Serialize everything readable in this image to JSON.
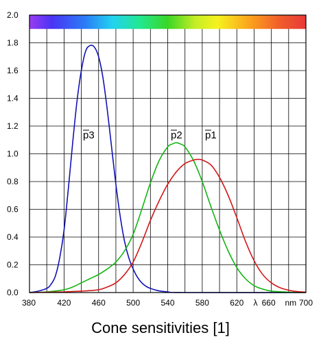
{
  "caption": "Cone sensitivities [1]",
  "chart_data": {
    "type": "line",
    "title": "Cone sensitivities [1]",
    "xlabel": "λ",
    "x_unit": "nm",
    "xlim": [
      380,
      700
    ],
    "ylim": [
      0,
      2.0
    ],
    "x_ticks": [
      "380",
      "420",
      "460",
      "500",
      "540",
      "580",
      "620",
      "λ",
      "660",
      "nm",
      "700"
    ],
    "y_ticks": [
      "0.0",
      "0.2",
      "0.4",
      "0.6",
      "0.8",
      "1.0",
      "1.2",
      "1.4",
      "1.6",
      "1.8",
      "2.0"
    ],
    "grid": true,
    "spectrum_bar": true,
    "series": [
      {
        "name": "p3",
        "color": "#1010b4",
        "points": [
          [
            380,
            0.0
          ],
          [
            390,
            0.01
          ],
          [
            400,
            0.03
          ],
          [
            405,
            0.06
          ],
          [
            410,
            0.12
          ],
          [
            415,
            0.25
          ],
          [
            420,
            0.45
          ],
          [
            425,
            0.75
          ],
          [
            430,
            1.08
          ],
          [
            435,
            1.38
          ],
          [
            440,
            1.6
          ],
          [
            445,
            1.74
          ],
          [
            450,
            1.78
          ],
          [
            455,
            1.77
          ],
          [
            460,
            1.7
          ],
          [
            465,
            1.55
          ],
          [
            470,
            1.32
          ],
          [
            475,
            1.05
          ],
          [
            480,
            0.78
          ],
          [
            485,
            0.55
          ],
          [
            490,
            0.37
          ],
          [
            495,
            0.25
          ],
          [
            500,
            0.17
          ],
          [
            505,
            0.11
          ],
          [
            510,
            0.07
          ],
          [
            515,
            0.045
          ],
          [
            520,
            0.03
          ],
          [
            525,
            0.02
          ],
          [
            530,
            0.012
          ],
          [
            540,
            0.005
          ],
          [
            560,
            0.0
          ],
          [
            700,
            0.0
          ]
        ]
      },
      {
        "name": "p2",
        "color": "#12b412",
        "points": [
          [
            380,
            0.0
          ],
          [
            400,
            0.005
          ],
          [
            420,
            0.02
          ],
          [
            430,
            0.04
          ],
          [
            440,
            0.07
          ],
          [
            450,
            0.1
          ],
          [
            460,
            0.13
          ],
          [
            470,
            0.17
          ],
          [
            480,
            0.22
          ],
          [
            490,
            0.3
          ],
          [
            500,
            0.42
          ],
          [
            510,
            0.6
          ],
          [
            520,
            0.79
          ],
          [
            530,
            0.95
          ],
          [
            540,
            1.05
          ],
          [
            545,
            1.07
          ],
          [
            550,
            1.08
          ],
          [
            555,
            1.07
          ],
          [
            560,
            1.05
          ],
          [
            570,
            0.95
          ],
          [
            580,
            0.8
          ],
          [
            590,
            0.62
          ],
          [
            600,
            0.45
          ],
          [
            610,
            0.3
          ],
          [
            620,
            0.18
          ],
          [
            630,
            0.1
          ],
          [
            640,
            0.05
          ],
          [
            650,
            0.025
          ],
          [
            660,
            0.01
          ],
          [
            680,
            0.003
          ],
          [
            700,
            0.0
          ]
        ]
      },
      {
        "name": "p1",
        "color": "#d01818",
        "points": [
          [
            380,
            0.0
          ],
          [
            420,
            0.005
          ],
          [
            440,
            0.01
          ],
          [
            460,
            0.02
          ],
          [
            470,
            0.04
          ],
          [
            480,
            0.07
          ],
          [
            490,
            0.13
          ],
          [
            500,
            0.22
          ],
          [
            510,
            0.36
          ],
          [
            520,
            0.52
          ],
          [
            530,
            0.66
          ],
          [
            540,
            0.78
          ],
          [
            550,
            0.87
          ],
          [
            560,
            0.93
          ],
          [
            570,
            0.955
          ],
          [
            575,
            0.96
          ],
          [
            580,
            0.955
          ],
          [
            590,
            0.92
          ],
          [
            600,
            0.83
          ],
          [
            610,
            0.7
          ],
          [
            620,
            0.54
          ],
          [
            630,
            0.37
          ],
          [
            640,
            0.23
          ],
          [
            650,
            0.13
          ],
          [
            660,
            0.07
          ],
          [
            670,
            0.035
          ],
          [
            680,
            0.017
          ],
          [
            690,
            0.007
          ],
          [
            700,
            0.003
          ]
        ]
      }
    ]
  }
}
